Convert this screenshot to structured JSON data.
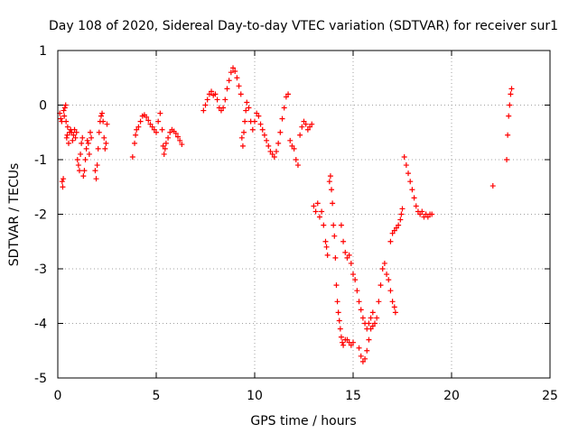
{
  "chart_data": {
    "type": "scatter",
    "title": "Day 108 of 2020, Sidereal Day-to-day VTEC variation (SDTVAR) for receiver sur1",
    "xlabel": "GPS time / hours",
    "ylabel": "SDTVAR / TECUs",
    "xlim": [
      0,
      25
    ],
    "ylim": [
      -5,
      1
    ],
    "xticks": [
      0,
      5,
      10,
      15,
      20,
      25
    ],
    "yticks": [
      -5,
      -4,
      -3,
      -2,
      -1,
      0,
      1
    ],
    "xtick_labels": [
      "0",
      "5",
      "10",
      "15",
      "20",
      "25"
    ],
    "ytick_labels": [
      "-5",
      "-4",
      "-3",
      "-2",
      "-1",
      "0",
      "1"
    ],
    "grid": true,
    "marker": "+",
    "marker_color": "#ff0000",
    "series": [
      {
        "name": "sur1",
        "points": [
          [
            0.1,
            -0.15
          ],
          [
            0.15,
            -0.25
          ],
          [
            0.2,
            -0.3
          ],
          [
            0.22,
            -1.4
          ],
          [
            0.25,
            -1.5
          ],
          [
            0.28,
            -1.35
          ],
          [
            0.3,
            -0.1
          ],
          [
            0.33,
            -0.2
          ],
          [
            0.36,
            -0.05
          ],
          [
            0.4,
            0.0
          ],
          [
            0.42,
            -0.3
          ],
          [
            0.45,
            -0.6
          ],
          [
            0.48,
            -0.55
          ],
          [
            0.5,
            -0.4
          ],
          [
            0.55,
            -0.7
          ],
          [
            0.6,
            -0.5
          ],
          [
            0.65,
            -0.45
          ],
          [
            0.7,
            -0.5
          ],
          [
            0.75,
            -0.65
          ],
          [
            0.8,
            -0.55
          ],
          [
            0.85,
            -0.45
          ],
          [
            0.9,
            -0.6
          ],
          [
            0.95,
            -0.5
          ],
          [
            1.0,
            -1.0
          ],
          [
            1.05,
            -1.1
          ],
          [
            1.1,
            -1.2
          ],
          [
            1.15,
            -0.9
          ],
          [
            1.2,
            -0.7
          ],
          [
            1.25,
            -0.6
          ],
          [
            1.3,
            -1.3
          ],
          [
            1.35,
            -1.2
          ],
          [
            1.4,
            -1.0
          ],
          [
            1.45,
            -0.8
          ],
          [
            1.5,
            -0.65
          ],
          [
            1.55,
            -0.7
          ],
          [
            1.6,
            -0.9
          ],
          [
            1.65,
            -0.5
          ],
          [
            1.7,
            -0.6
          ],
          [
            1.9,
            -1.2
          ],
          [
            1.95,
            -1.35
          ],
          [
            2.0,
            -1.1
          ],
          [
            2.05,
            -0.8
          ],
          [
            2.1,
            -0.5
          ],
          [
            2.15,
            -0.3
          ],
          [
            2.2,
            -0.2
          ],
          [
            2.25,
            -0.15
          ],
          [
            2.3,
            -0.3
          ],
          [
            2.35,
            -0.6
          ],
          [
            2.4,
            -0.8
          ],
          [
            2.45,
            -0.7
          ],
          [
            2.5,
            -0.35
          ],
          [
            3.8,
            -0.95
          ],
          [
            3.9,
            -0.7
          ],
          [
            3.95,
            -0.55
          ],
          [
            4.0,
            -0.45
          ],
          [
            4.1,
            -0.4
          ],
          [
            4.2,
            -0.3
          ],
          [
            4.3,
            -0.2
          ],
          [
            4.4,
            -0.18
          ],
          [
            4.5,
            -0.22
          ],
          [
            4.6,
            -0.28
          ],
          [
            4.7,
            -0.35
          ],
          [
            4.8,
            -0.4
          ],
          [
            4.9,
            -0.45
          ],
          [
            5.0,
            -0.5
          ],
          [
            5.1,
            -0.3
          ],
          [
            5.2,
            -0.15
          ],
          [
            5.3,
            -0.45
          ],
          [
            5.35,
            -0.75
          ],
          [
            5.4,
            -0.9
          ],
          [
            5.45,
            -0.8
          ],
          [
            5.5,
            -0.7
          ],
          [
            5.6,
            -0.6
          ],
          [
            5.7,
            -0.5
          ],
          [
            5.8,
            -0.45
          ],
          [
            5.9,
            -0.48
          ],
          [
            6.0,
            -0.52
          ],
          [
            6.1,
            -0.58
          ],
          [
            6.2,
            -0.65
          ],
          [
            6.3,
            -0.72
          ],
          [
            7.4,
            -0.1
          ],
          [
            7.5,
            0.0
          ],
          [
            7.6,
            0.1
          ],
          [
            7.7,
            0.2
          ],
          [
            7.8,
            0.25
          ],
          [
            7.9,
            0.18
          ],
          [
            8.0,
            0.2
          ],
          [
            8.1,
            0.1
          ],
          [
            8.2,
            -0.05
          ],
          [
            8.3,
            -0.1
          ],
          [
            8.4,
            -0.05
          ],
          [
            8.5,
            0.1
          ],
          [
            8.6,
            0.3
          ],
          [
            8.7,
            0.45
          ],
          [
            8.8,
            0.6
          ],
          [
            8.9,
            0.68
          ],
          [
            9.0,
            0.62
          ],
          [
            9.1,
            0.5
          ],
          [
            9.2,
            0.35
          ],
          [
            9.3,
            0.2
          ],
          [
            9.35,
            -0.6
          ],
          [
            9.4,
            -0.75
          ],
          [
            9.45,
            -0.5
          ],
          [
            9.5,
            -0.3
          ],
          [
            9.55,
            -0.1
          ],
          [
            9.6,
            0.05
          ],
          [
            9.7,
            -0.05
          ],
          [
            9.8,
            -0.3
          ],
          [
            9.9,
            -0.45
          ],
          [
            10.0,
            -0.3
          ],
          [
            10.1,
            -0.15
          ],
          [
            10.2,
            -0.2
          ],
          [
            10.3,
            -0.35
          ],
          [
            10.4,
            -0.45
          ],
          [
            10.5,
            -0.55
          ],
          [
            10.6,
            -0.65
          ],
          [
            10.7,
            -0.75
          ],
          [
            10.8,
            -0.85
          ],
          [
            10.9,
            -0.9
          ],
          [
            11.0,
            -0.95
          ],
          [
            11.1,
            -0.85
          ],
          [
            11.2,
            -0.7
          ],
          [
            11.3,
            -0.5
          ],
          [
            11.4,
            -0.25
          ],
          [
            11.5,
            -0.05
          ],
          [
            11.6,
            0.15
          ],
          [
            11.7,
            0.2
          ],
          [
            11.8,
            -0.65
          ],
          [
            11.9,
            -0.75
          ],
          [
            12.0,
            -0.8
          ],
          [
            12.1,
            -1.0
          ],
          [
            12.2,
            -1.1
          ],
          [
            12.3,
            -0.55
          ],
          [
            12.4,
            -0.4
          ],
          [
            12.5,
            -0.3
          ],
          [
            12.6,
            -0.35
          ],
          [
            12.7,
            -0.45
          ],
          [
            12.8,
            -0.4
          ],
          [
            12.9,
            -0.35
          ],
          [
            13.0,
            -1.85
          ],
          [
            13.1,
            -1.95
          ],
          [
            13.2,
            -1.8
          ],
          [
            13.3,
            -2.05
          ],
          [
            13.4,
            -1.95
          ],
          [
            13.5,
            -2.2
          ],
          [
            13.6,
            -2.5
          ],
          [
            13.65,
            -2.6
          ],
          [
            13.7,
            -2.75
          ],
          [
            13.8,
            -1.4
          ],
          [
            13.85,
            -1.3
          ],
          [
            13.9,
            -1.55
          ],
          [
            13.95,
            -1.8
          ],
          [
            14.0,
            -2.2
          ],
          [
            14.05,
            -2.4
          ],
          [
            14.1,
            -2.8
          ],
          [
            14.15,
            -3.3
          ],
          [
            14.2,
            -3.6
          ],
          [
            14.25,
            -3.8
          ],
          [
            14.3,
            -3.95
          ],
          [
            14.35,
            -4.1
          ],
          [
            14.4,
            -4.25
          ],
          [
            14.45,
            -4.35
          ],
          [
            14.5,
            -4.4
          ],
          [
            14.6,
            -4.3
          ],
          [
            14.7,
            -4.3
          ],
          [
            14.8,
            -4.35
          ],
          [
            14.9,
            -4.4
          ],
          [
            15.0,
            -4.35
          ],
          [
            14.4,
            -2.2
          ],
          [
            14.5,
            -2.5
          ],
          [
            14.6,
            -2.7
          ],
          [
            14.7,
            -2.8
          ],
          [
            14.8,
            -2.75
          ],
          [
            14.9,
            -2.9
          ],
          [
            15.0,
            -3.1
          ],
          [
            15.1,
            -3.2
          ],
          [
            15.2,
            -3.4
          ],
          [
            15.3,
            -3.6
          ],
          [
            15.4,
            -3.75
          ],
          [
            15.5,
            -3.9
          ],
          [
            15.6,
            -4.0
          ],
          [
            15.7,
            -4.1
          ],
          [
            15.8,
            -4.0
          ],
          [
            15.9,
            -3.9
          ],
          [
            16.0,
            -3.8
          ],
          [
            15.3,
            -4.45
          ],
          [
            15.4,
            -4.6
          ],
          [
            15.5,
            -4.7
          ],
          [
            15.6,
            -4.65
          ],
          [
            15.7,
            -4.5
          ],
          [
            15.8,
            -4.3
          ],
          [
            15.9,
            -4.1
          ],
          [
            16.0,
            -4.05
          ],
          [
            16.1,
            -4.0
          ],
          [
            16.2,
            -3.9
          ],
          [
            16.3,
            -3.6
          ],
          [
            16.4,
            -3.3
          ],
          [
            16.5,
            -3.0
          ],
          [
            16.6,
            -2.9
          ],
          [
            16.7,
            -3.1
          ],
          [
            16.8,
            -3.2
          ],
          [
            16.9,
            -3.4
          ],
          [
            17.0,
            -3.6
          ],
          [
            17.1,
            -3.7
          ],
          [
            17.15,
            -3.8
          ],
          [
            16.9,
            -2.5
          ],
          [
            17.0,
            -2.35
          ],
          [
            17.1,
            -2.3
          ],
          [
            17.2,
            -2.25
          ],
          [
            17.3,
            -2.2
          ],
          [
            17.4,
            -2.1
          ],
          [
            17.45,
            -2.0
          ],
          [
            17.5,
            -1.9
          ],
          [
            17.6,
            -0.95
          ],
          [
            17.7,
            -1.1
          ],
          [
            17.8,
            -1.25
          ],
          [
            17.9,
            -1.4
          ],
          [
            18.0,
            -1.55
          ],
          [
            18.1,
            -1.7
          ],
          [
            18.2,
            -1.85
          ],
          [
            18.3,
            -1.95
          ],
          [
            18.4,
            -2.0
          ],
          [
            18.5,
            -1.95
          ],
          [
            18.6,
            -2.05
          ],
          [
            18.7,
            -2.0
          ],
          [
            18.8,
            -2.05
          ],
          [
            18.9,
            -2.0
          ],
          [
            19.0,
            -2.0
          ],
          [
            22.1,
            -1.48
          ],
          [
            22.8,
            -1.0
          ],
          [
            22.85,
            -0.55
          ],
          [
            22.9,
            -0.2
          ],
          [
            22.95,
            0.0
          ],
          [
            23.0,
            0.2
          ],
          [
            23.05,
            0.3
          ]
        ]
      }
    ]
  }
}
